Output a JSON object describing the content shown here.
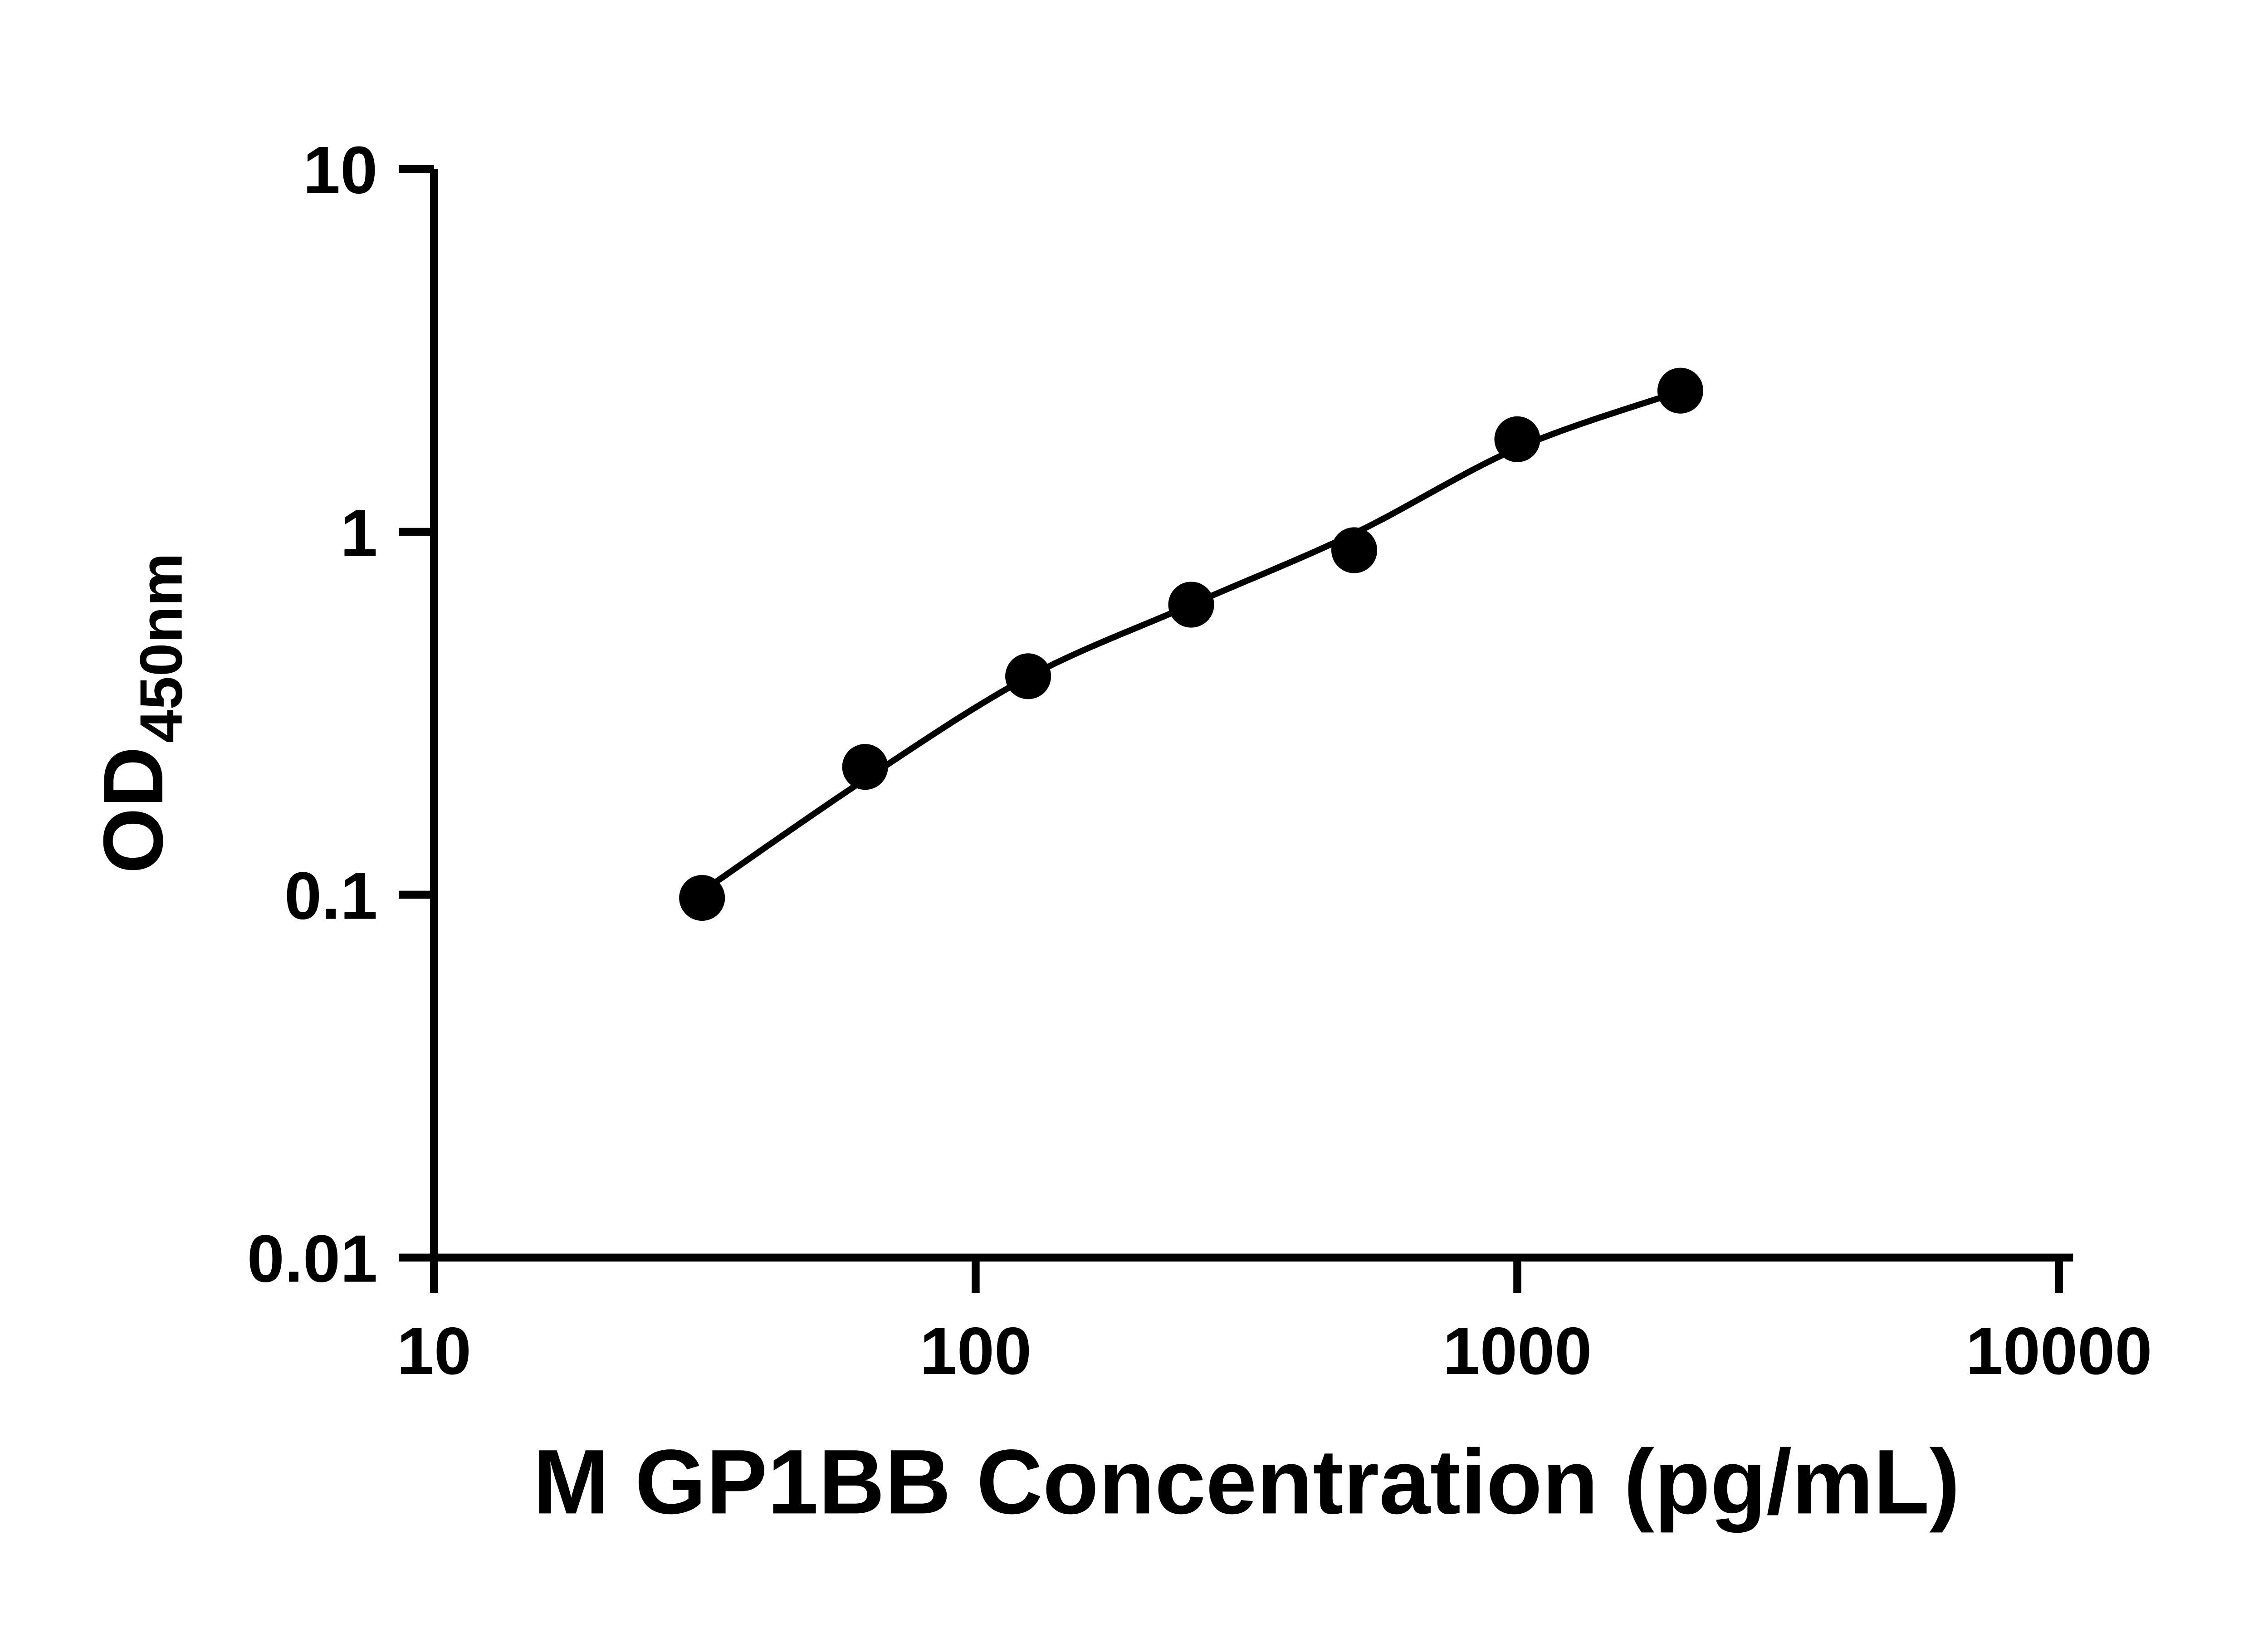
{
  "figure": {
    "background_color": "#ffffff"
  },
  "chart_data": {
    "type": "scatter",
    "title": "",
    "xlabel": "M GP1BB Concentration (pg/mL)",
    "ylabel": "OD450nm",
    "ylabel_main": "OD",
    "ylabel_subscript": "450nm",
    "x_scale": "log",
    "y_scale": "log",
    "xlim": [
      10,
      10000
    ],
    "ylim": [
      0.01,
      10
    ],
    "grid": false,
    "legend": false,
    "axis_color": "#000000",
    "text_color": "#000000",
    "marker": {
      "shape": "circle",
      "color": "#000000"
    },
    "line": {
      "color": "#000000"
    },
    "x_tick_values": [
      10,
      100,
      1000,
      10000
    ],
    "x_tick_labels": [
      "10",
      "100",
      "1000",
      "10000"
    ],
    "y_tick_values": [
      10,
      1,
      0.1,
      0.01
    ],
    "y_tick_labels": [
      "10",
      "1",
      "0.1",
      "0.01"
    ],
    "points": [
      {
        "x": 31.25,
        "y": 0.098
      },
      {
        "x": 62.5,
        "y": 0.225
      },
      {
        "x": 125,
        "y": 0.4
      },
      {
        "x": 250,
        "y": 0.63
      },
      {
        "x": 500,
        "y": 0.89
      },
      {
        "x": 1000,
        "y": 1.8
      },
      {
        "x": 2000,
        "y": 2.45
      }
    ],
    "fit_curve": [
      {
        "x": 31.25,
        "y": 0.102
      },
      {
        "x": 62.5,
        "y": 0.208
      },
      {
        "x": 125,
        "y": 0.398
      },
      {
        "x": 250,
        "y": 0.63
      },
      {
        "x": 500,
        "y": 0.99
      },
      {
        "x": 1000,
        "y": 1.7
      },
      {
        "x": 2000,
        "y": 2.44
      }
    ]
  }
}
